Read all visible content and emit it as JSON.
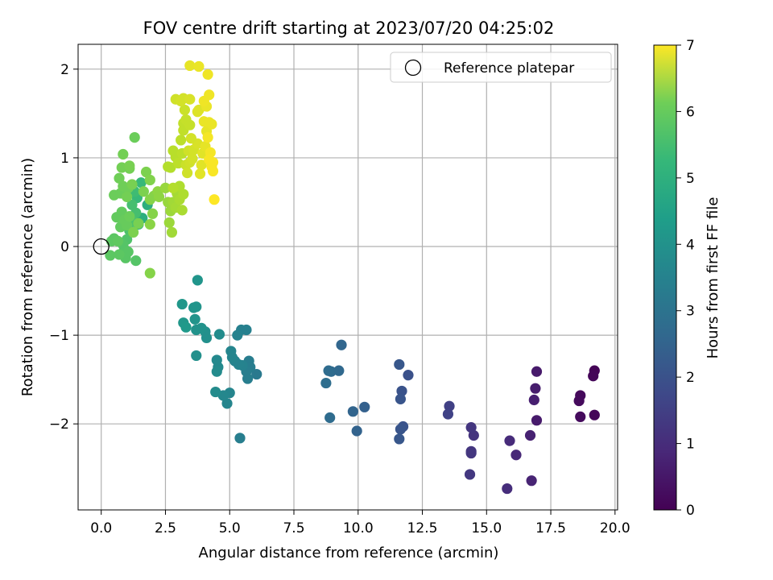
{
  "chart_data": {
    "type": "scatter",
    "title": "FOV centre drift starting at 2023/07/20 04:25:02",
    "xlabel": "Angular distance from reference (arcmin)",
    "ylabel": "Rotation from reference (arcmin)",
    "xlim": [
      -0.9,
      20.1
    ],
    "ylim": [
      -2.97,
      2.28
    ],
    "x_ticks": [
      "0.0",
      "2.5",
      "5.0",
      "7.5",
      "10.0",
      "12.5",
      "15.0",
      "17.5",
      "20.0"
    ],
    "y_ticks": [
      "−2",
      "−1",
      "0",
      "1",
      "2"
    ],
    "grid": true,
    "legend": {
      "position": "top-right",
      "entries": [
        "Reference platepar"
      ]
    },
    "reference_point": {
      "x": 0.0,
      "y": 0.0
    },
    "colorbar": {
      "label": "Hours from first FF file",
      "range": [
        0,
        7
      ],
      "ticks": [
        "0",
        "1",
        "2",
        "3",
        "4",
        "5",
        "6",
        "7"
      ],
      "colormap": "viridis"
    },
    "points": [
      {
        "x": 19.2,
        "y": -1.4,
        "c": 0.05
      },
      {
        "x": 19.15,
        "y": -1.46,
        "c": 0.08
      },
      {
        "x": 19.2,
        "y": -1.9,
        "c": 0.1
      },
      {
        "x": 18.65,
        "y": -1.68,
        "c": 0.15
      },
      {
        "x": 18.6,
        "y": -1.74,
        "c": 0.18
      },
      {
        "x": 18.65,
        "y": -1.92,
        "c": 0.2
      },
      {
        "x": 16.95,
        "y": -1.41,
        "c": 0.5
      },
      {
        "x": 16.9,
        "y": -1.6,
        "c": 0.55
      },
      {
        "x": 16.85,
        "y": -1.73,
        "c": 0.6
      },
      {
        "x": 16.95,
        "y": -1.96,
        "c": 0.5
      },
      {
        "x": 16.7,
        "y": -2.13,
        "c": 0.65
      },
      {
        "x": 16.75,
        "y": -2.64,
        "c": 0.7
      },
      {
        "x": 16.15,
        "y": -2.35,
        "c": 0.8
      },
      {
        "x": 15.9,
        "y": -2.19,
        "c": 0.85
      },
      {
        "x": 15.8,
        "y": -2.73,
        "c": 0.9
      },
      {
        "x": 14.5,
        "y": -2.13,
        "c": 1.05
      },
      {
        "x": 14.4,
        "y": -2.04,
        "c": 1.1
      },
      {
        "x": 14.4,
        "y": -2.31,
        "c": 1.1
      },
      {
        "x": 14.35,
        "y": -2.57,
        "c": 1.15
      },
      {
        "x": 14.4,
        "y": -2.33,
        "c": 1.12
      },
      {
        "x": 13.55,
        "y": -1.8,
        "c": 1.35
      },
      {
        "x": 13.5,
        "y": -1.89,
        "c": 1.4
      },
      {
        "x": 11.95,
        "y": -1.45,
        "c": 1.75
      },
      {
        "x": 11.7,
        "y": -1.63,
        "c": 1.8
      },
      {
        "x": 11.65,
        "y": -1.72,
        "c": 1.85
      },
      {
        "x": 11.6,
        "y": -1.33,
        "c": 1.9
      },
      {
        "x": 11.75,
        "y": -2.03,
        "c": 1.8
      },
      {
        "x": 11.65,
        "y": -2.06,
        "c": 1.85
      },
      {
        "x": 11.6,
        "y": -2.17,
        "c": 1.9
      },
      {
        "x": 10.25,
        "y": -1.81,
        "c": 2.15
      },
      {
        "x": 9.95,
        "y": -2.08,
        "c": 2.2
      },
      {
        "x": 9.8,
        "y": -1.86,
        "c": 2.25
      },
      {
        "x": 9.35,
        "y": -1.11,
        "c": 2.3
      },
      {
        "x": 9.25,
        "y": -1.4,
        "c": 2.35
      },
      {
        "x": 8.95,
        "y": -1.41,
        "c": 2.4
      },
      {
        "x": 8.85,
        "y": -1.4,
        "c": 2.45
      },
      {
        "x": 8.75,
        "y": -1.54,
        "c": 2.5
      },
      {
        "x": 8.9,
        "y": -1.93,
        "c": 2.45
      },
      {
        "x": 6.05,
        "y": -1.44,
        "c": 2.85
      },
      {
        "x": 5.75,
        "y": -1.29,
        "c": 2.95
      },
      {
        "x": 5.8,
        "y": -1.36,
        "c": 2.95
      },
      {
        "x": 5.65,
        "y": -1.41,
        "c": 3.0
      },
      {
        "x": 5.7,
        "y": -1.49,
        "c": 3.0
      },
      {
        "x": 5.65,
        "y": -0.94,
        "c": 3.05
      },
      {
        "x": 5.45,
        "y": -0.94,
        "c": 3.05
      },
      {
        "x": 5.3,
        "y": -1.0,
        "c": 3.1
      },
      {
        "x": 5.5,
        "y": -1.34,
        "c": 3.1
      },
      {
        "x": 5.35,
        "y": -1.33,
        "c": 3.15
      },
      {
        "x": 5.2,
        "y": -1.29,
        "c": 3.15
      },
      {
        "x": 5.05,
        "y": -1.18,
        "c": 3.2
      },
      {
        "x": 5.1,
        "y": -1.25,
        "c": 3.2
      },
      {
        "x": 5.4,
        "y": -2.16,
        "c": 3.0
      },
      {
        "x": 5.0,
        "y": -1.65,
        "c": 3.2
      },
      {
        "x": 4.9,
        "y": -1.77,
        "c": 3.2
      },
      {
        "x": 4.75,
        "y": -1.68,
        "c": 3.25
      },
      {
        "x": 4.55,
        "y": -1.36,
        "c": 3.3
      },
      {
        "x": 4.5,
        "y": -1.28,
        "c": 3.3
      },
      {
        "x": 4.5,
        "y": -1.41,
        "c": 3.35
      },
      {
        "x": 4.45,
        "y": -1.64,
        "c": 3.35
      },
      {
        "x": 4.6,
        "y": -0.99,
        "c": 3.4
      },
      {
        "x": 4.1,
        "y": -1.03,
        "c": 3.5
      },
      {
        "x": 4.05,
        "y": -0.96,
        "c": 3.5
      },
      {
        "x": 3.9,
        "y": -0.92,
        "c": 3.55
      },
      {
        "x": 3.7,
        "y": -0.94,
        "c": 3.55
      },
      {
        "x": 3.65,
        "y": -0.82,
        "c": 3.6
      },
      {
        "x": 3.7,
        "y": -0.68,
        "c": 3.6
      },
      {
        "x": 3.6,
        "y": -0.69,
        "c": 3.65
      },
      {
        "x": 3.75,
        "y": -0.38,
        "c": 3.65
      },
      {
        "x": 3.7,
        "y": -1.23,
        "c": 3.5
      },
      {
        "x": 3.15,
        "y": -0.65,
        "c": 3.7
      },
      {
        "x": 3.2,
        "y": -0.86,
        "c": 3.7
      },
      {
        "x": 3.3,
        "y": -0.91,
        "c": 3.75
      },
      {
        "x": 1.45,
        "y": 0.25,
        "c": 4.5
      },
      {
        "x": 1.6,
        "y": 0.32,
        "c": 4.4
      },
      {
        "x": 1.8,
        "y": 0.47,
        "c": 4.4
      },
      {
        "x": 1.55,
        "y": 0.72,
        "c": 4.7
      },
      {
        "x": 1.4,
        "y": 0.55,
        "c": 4.7
      },
      {
        "x": 1.3,
        "y": 0.62,
        "c": 4.8
      },
      {
        "x": 1.2,
        "y": 0.47,
        "c": 4.9
      },
      {
        "x": 1.35,
        "y": 0.38,
        "c": 4.9
      },
      {
        "x": 1.25,
        "y": 0.28,
        "c": 5.0
      },
      {
        "x": 1.1,
        "y": 0.18,
        "c": 5.0
      },
      {
        "x": 1.0,
        "y": 0.08,
        "c": 5.05
      },
      {
        "x": 0.9,
        "y": -0.03,
        "c": 5.1
      },
      {
        "x": 0.85,
        "y": 0.02,
        "c": 5.1
      },
      {
        "x": 1.05,
        "y": -0.06,
        "c": 5.15
      },
      {
        "x": 0.95,
        "y": -0.13,
        "c": 5.15
      },
      {
        "x": 1.35,
        "y": -0.16,
        "c": 5.1
      },
      {
        "x": 0.7,
        "y": -0.09,
        "c": 5.2
      },
      {
        "x": 0.35,
        "y": -0.1,
        "c": 5.2
      },
      {
        "x": 0.4,
        "y": 0.06,
        "c": 5.2
      },
      {
        "x": 0.5,
        "y": 0.09,
        "c": 5.2
      },
      {
        "x": 0.65,
        "y": 0.06,
        "c": 5.25
      },
      {
        "x": 0.75,
        "y": 0.22,
        "c": 5.3
      },
      {
        "x": 0.6,
        "y": 0.33,
        "c": 5.3
      },
      {
        "x": 0.8,
        "y": 0.39,
        "c": 5.3
      },
      {
        "x": 0.9,
        "y": 0.3,
        "c": 5.35
      },
      {
        "x": 1.0,
        "y": 0.24,
        "c": 5.35
      },
      {
        "x": 1.1,
        "y": 0.34,
        "c": 5.4
      },
      {
        "x": 0.5,
        "y": 0.58,
        "c": 5.4
      },
      {
        "x": 0.75,
        "y": 0.6,
        "c": 5.4
      },
      {
        "x": 0.85,
        "y": 0.68,
        "c": 5.45
      },
      {
        "x": 1.05,
        "y": 0.66,
        "c": 5.45
      },
      {
        "x": 1.0,
        "y": 0.56,
        "c": 5.5
      },
      {
        "x": 0.7,
        "y": 0.77,
        "c": 5.45
      },
      {
        "x": 0.8,
        "y": 0.89,
        "c": 5.5
      },
      {
        "x": 1.1,
        "y": 0.88,
        "c": 5.5
      },
      {
        "x": 1.1,
        "y": 0.91,
        "c": 5.55
      },
      {
        "x": 0.85,
        "y": 1.04,
        "c": 5.5
      },
      {
        "x": 1.3,
        "y": 1.23,
        "c": 5.4
      },
      {
        "x": 1.2,
        "y": 0.7,
        "c": 5.55
      },
      {
        "x": 1.45,
        "y": 0.26,
        "c": 5.55
      },
      {
        "x": 1.25,
        "y": 0.16,
        "c": 5.6
      },
      {
        "x": 1.65,
        "y": 0.62,
        "c": 5.6
      },
      {
        "x": 1.75,
        "y": 0.84,
        "c": 5.6
      },
      {
        "x": 1.9,
        "y": 0.75,
        "c": 5.65
      },
      {
        "x": 1.9,
        "y": 0.53,
        "c": 5.7
      },
      {
        "x": 2.05,
        "y": 0.57,
        "c": 5.7
      },
      {
        "x": 2.0,
        "y": 0.37,
        "c": 5.7
      },
      {
        "x": 1.9,
        "y": 0.25,
        "c": 5.75
      },
      {
        "x": 1.9,
        "y": -0.3,
        "c": 5.7
      },
      {
        "x": 2.2,
        "y": 0.62,
        "c": 5.8
      },
      {
        "x": 2.25,
        "y": 0.56,
        "c": 5.8
      },
      {
        "x": 2.5,
        "y": 0.66,
        "c": 5.9
      },
      {
        "x": 2.6,
        "y": 0.5,
        "c": 5.9
      },
      {
        "x": 2.7,
        "y": 0.4,
        "c": 5.95
      },
      {
        "x": 2.65,
        "y": 0.27,
        "c": 5.95
      },
      {
        "x": 2.75,
        "y": 0.16,
        "c": 6.0
      },
      {
        "x": 2.8,
        "y": 0.5,
        "c": 6.0
      },
      {
        "x": 2.9,
        "y": 0.44,
        "c": 6.05
      },
      {
        "x": 2.95,
        "y": 0.6,
        "c": 6.05
      },
      {
        "x": 3.05,
        "y": 0.53,
        "c": 6.1
      },
      {
        "x": 3.15,
        "y": 0.41,
        "c": 6.1
      },
      {
        "x": 3.2,
        "y": 0.59,
        "c": 6.15
      },
      {
        "x": 3.05,
        "y": 0.68,
        "c": 6.15
      },
      {
        "x": 2.8,
        "y": 0.66,
        "c": 6.2
      },
      {
        "x": 2.7,
        "y": 0.89,
        "c": 6.2
      },
      {
        "x": 2.6,
        "y": 0.9,
        "c": 6.2
      },
      {
        "x": 2.9,
        "y": 1.01,
        "c": 6.25
      },
      {
        "x": 2.8,
        "y": 1.08,
        "c": 6.25
      },
      {
        "x": 3.0,
        "y": 0.94,
        "c": 6.3
      },
      {
        "x": 3.15,
        "y": 1.05,
        "c": 6.3
      },
      {
        "x": 3.1,
        "y": 1.2,
        "c": 6.3
      },
      {
        "x": 3.2,
        "y": 1.31,
        "c": 6.35
      },
      {
        "x": 3.2,
        "y": 1.39,
        "c": 6.35
      },
      {
        "x": 3.3,
        "y": 1.43,
        "c": 6.4
      },
      {
        "x": 3.45,
        "y": 1.37,
        "c": 6.4
      },
      {
        "x": 3.25,
        "y": 1.54,
        "c": 6.45
      },
      {
        "x": 3.3,
        "y": 0.92,
        "c": 6.45
      },
      {
        "x": 3.35,
        "y": 0.83,
        "c": 6.5
      },
      {
        "x": 3.45,
        "y": 0.95,
        "c": 6.5
      },
      {
        "x": 3.4,
        "y": 1.08,
        "c": 6.5
      },
      {
        "x": 3.55,
        "y": 0.99,
        "c": 6.55
      },
      {
        "x": 3.6,
        "y": 1.09,
        "c": 6.55
      },
      {
        "x": 3.75,
        "y": 1.16,
        "c": 6.6
      },
      {
        "x": 3.5,
        "y": 1.22,
        "c": 6.55
      },
      {
        "x": 2.9,
        "y": 1.66,
        "c": 6.5
      },
      {
        "x": 3.1,
        "y": 1.64,
        "c": 6.55
      },
      {
        "x": 3.2,
        "y": 1.67,
        "c": 6.55
      },
      {
        "x": 3.45,
        "y": 1.66,
        "c": 6.6
      },
      {
        "x": 3.75,
        "y": 1.52,
        "c": 6.65
      },
      {
        "x": 3.8,
        "y": 1.54,
        "c": 6.65
      },
      {
        "x": 3.9,
        "y": 0.92,
        "c": 6.7
      },
      {
        "x": 3.85,
        "y": 0.82,
        "c": 6.7
      },
      {
        "x": 3.95,
        "y": 1.05,
        "c": 6.7
      },
      {
        "x": 4.05,
        "y": 1.13,
        "c": 6.75
      },
      {
        "x": 4.1,
        "y": 1.3,
        "c": 6.75
      },
      {
        "x": 4.0,
        "y": 1.41,
        "c": 6.8
      },
      {
        "x": 4.2,
        "y": 1.4,
        "c": 6.8
      },
      {
        "x": 4.3,
        "y": 1.38,
        "c": 6.8
      },
      {
        "x": 4.1,
        "y": 1.58,
        "c": 6.8
      },
      {
        "x": 4.0,
        "y": 1.64,
        "c": 6.85
      },
      {
        "x": 4.2,
        "y": 1.71,
        "c": 6.85
      },
      {
        "x": 4.15,
        "y": 1.94,
        "c": 6.85
      },
      {
        "x": 3.45,
        "y": 2.04,
        "c": 6.75
      },
      {
        "x": 3.8,
        "y": 2.03,
        "c": 6.8
      },
      {
        "x": 4.15,
        "y": 1.23,
        "c": 6.9
      },
      {
        "x": 4.25,
        "y": 1.06,
        "c": 6.9
      },
      {
        "x": 4.35,
        "y": 0.95,
        "c": 6.95
      },
      {
        "x": 4.3,
        "y": 0.9,
        "c": 6.95
      },
      {
        "x": 4.35,
        "y": 0.85,
        "c": 6.95
      },
      {
        "x": 4.2,
        "y": 0.98,
        "c": 6.95
      },
      {
        "x": 4.4,
        "y": 0.53,
        "c": 7.0
      }
    ]
  }
}
